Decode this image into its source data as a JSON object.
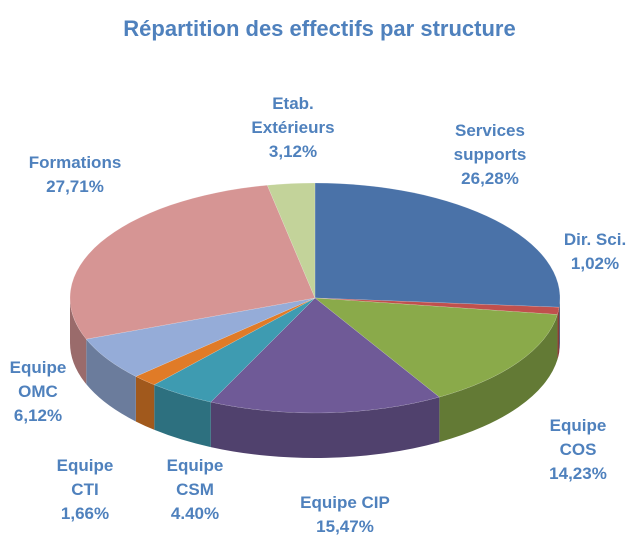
{
  "chart_data": {
    "type": "pie",
    "title": "Répartition des effectifs par structure",
    "categories": [
      "Services supports",
      "Dir. Sci.",
      "Equipe COS",
      "Equipe CIP",
      "Equipe CSM",
      "Equipe CTI",
      "Equipe OMC",
      "Formations",
      "Etab. Extérieurs"
    ],
    "values": [
      26.28,
      1.02,
      14.23,
      15.47,
      4.4,
      1.66,
      6.12,
      27.71,
      3.12
    ],
    "value_labels": [
      "26,28%",
      "1,02%",
      "14,23%",
      "15,47%",
      "4.40%",
      "1,66%",
      "6,12%",
      "27,71%",
      "3,12%"
    ],
    "colors": [
      "#4a72a8",
      "#c0504d",
      "#8aaa4a",
      "#6f5a97",
      "#3e9bb1",
      "#e07b27",
      "#95acd8",
      "#d69594",
      "#c3d39a"
    ]
  }
}
